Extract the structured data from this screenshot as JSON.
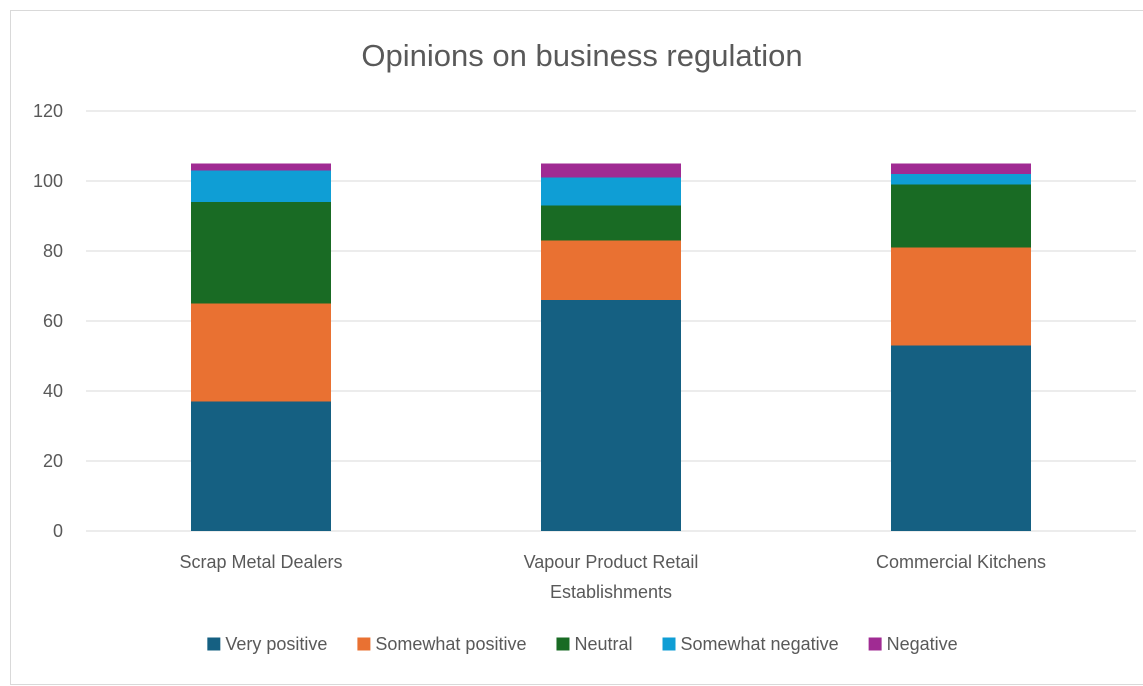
{
  "chart_data": {
    "type": "bar",
    "stacked": true,
    "title": "Opinions on business regulation",
    "xlabel": "",
    "ylabel": "",
    "ylim": [
      0,
      120
    ],
    "yticks": [
      0,
      20,
      40,
      60,
      80,
      100,
      120
    ],
    "grid": true,
    "legend_position": "bottom",
    "categories": [
      [
        "Scrap Metal Dealers"
      ],
      [
        "Vapour Product Retail",
        "Establishments"
      ],
      [
        "Commercial Kitchens"
      ]
    ],
    "series": [
      {
        "name": "Very positive",
        "color": "#156082",
        "values": [
          37,
          66,
          53
        ]
      },
      {
        "name": "Somewhat positive",
        "color": "#E97132",
        "values": [
          28,
          17,
          28
        ]
      },
      {
        "name": "Neutral",
        "color": "#196B24",
        "values": [
          29,
          10,
          18
        ]
      },
      {
        "name": "Somewhat negative",
        "color": "#0F9ED5",
        "values": [
          9,
          8,
          3
        ]
      },
      {
        "name": "Negative",
        "color": "#A02B93",
        "values": [
          2,
          4,
          3
        ]
      }
    ]
  }
}
